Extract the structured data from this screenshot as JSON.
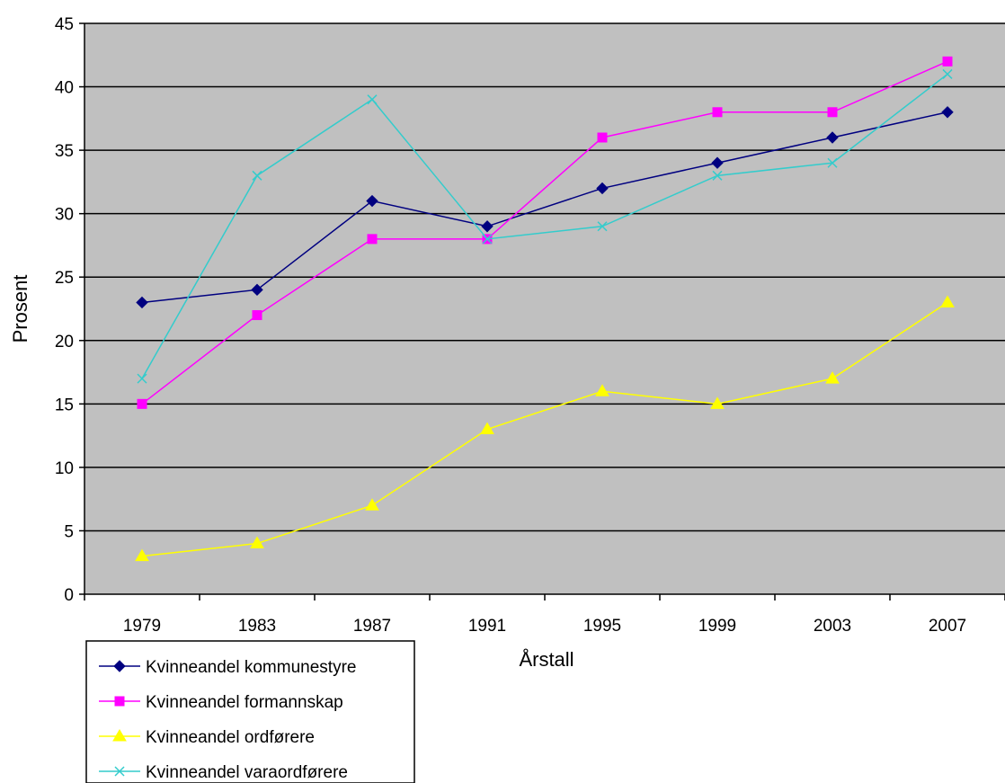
{
  "chart_data": {
    "type": "line",
    "title": "",
    "xlabel": "Årstall",
    "ylabel": "Prosent",
    "ylim": [
      0,
      45
    ],
    "y_ticks": [
      0,
      5,
      10,
      15,
      20,
      25,
      30,
      35,
      40,
      45
    ],
    "categories": [
      "1979",
      "1983",
      "1987",
      "1991",
      "1995",
      "1999",
      "2003",
      "2007"
    ],
    "grid": "horizontal",
    "plot_background": "#c0c0c0",
    "legend_placement": "bottom-left",
    "series": [
      {
        "name": "Kvinneandel kommunestyre",
        "color": "#000080",
        "marker": "diamond",
        "values": [
          23,
          24,
          31,
          29,
          32,
          34,
          36,
          38
        ]
      },
      {
        "name": "Kvinneandel formannskap",
        "color": "#ff00ff",
        "marker": "square",
        "values": [
          15,
          22,
          28,
          28,
          36,
          38,
          38,
          42
        ]
      },
      {
        "name": "Kvinneandel ordførere",
        "color": "#ffff00",
        "marker": "triangle",
        "values": [
          3,
          4,
          7,
          13,
          16,
          15,
          17,
          23
        ]
      },
      {
        "name": "Kvinneandel varaordførere",
        "color": "#33cccc",
        "marker": "x",
        "values": [
          17,
          33,
          39,
          28,
          29,
          33,
          34,
          41
        ]
      }
    ]
  }
}
